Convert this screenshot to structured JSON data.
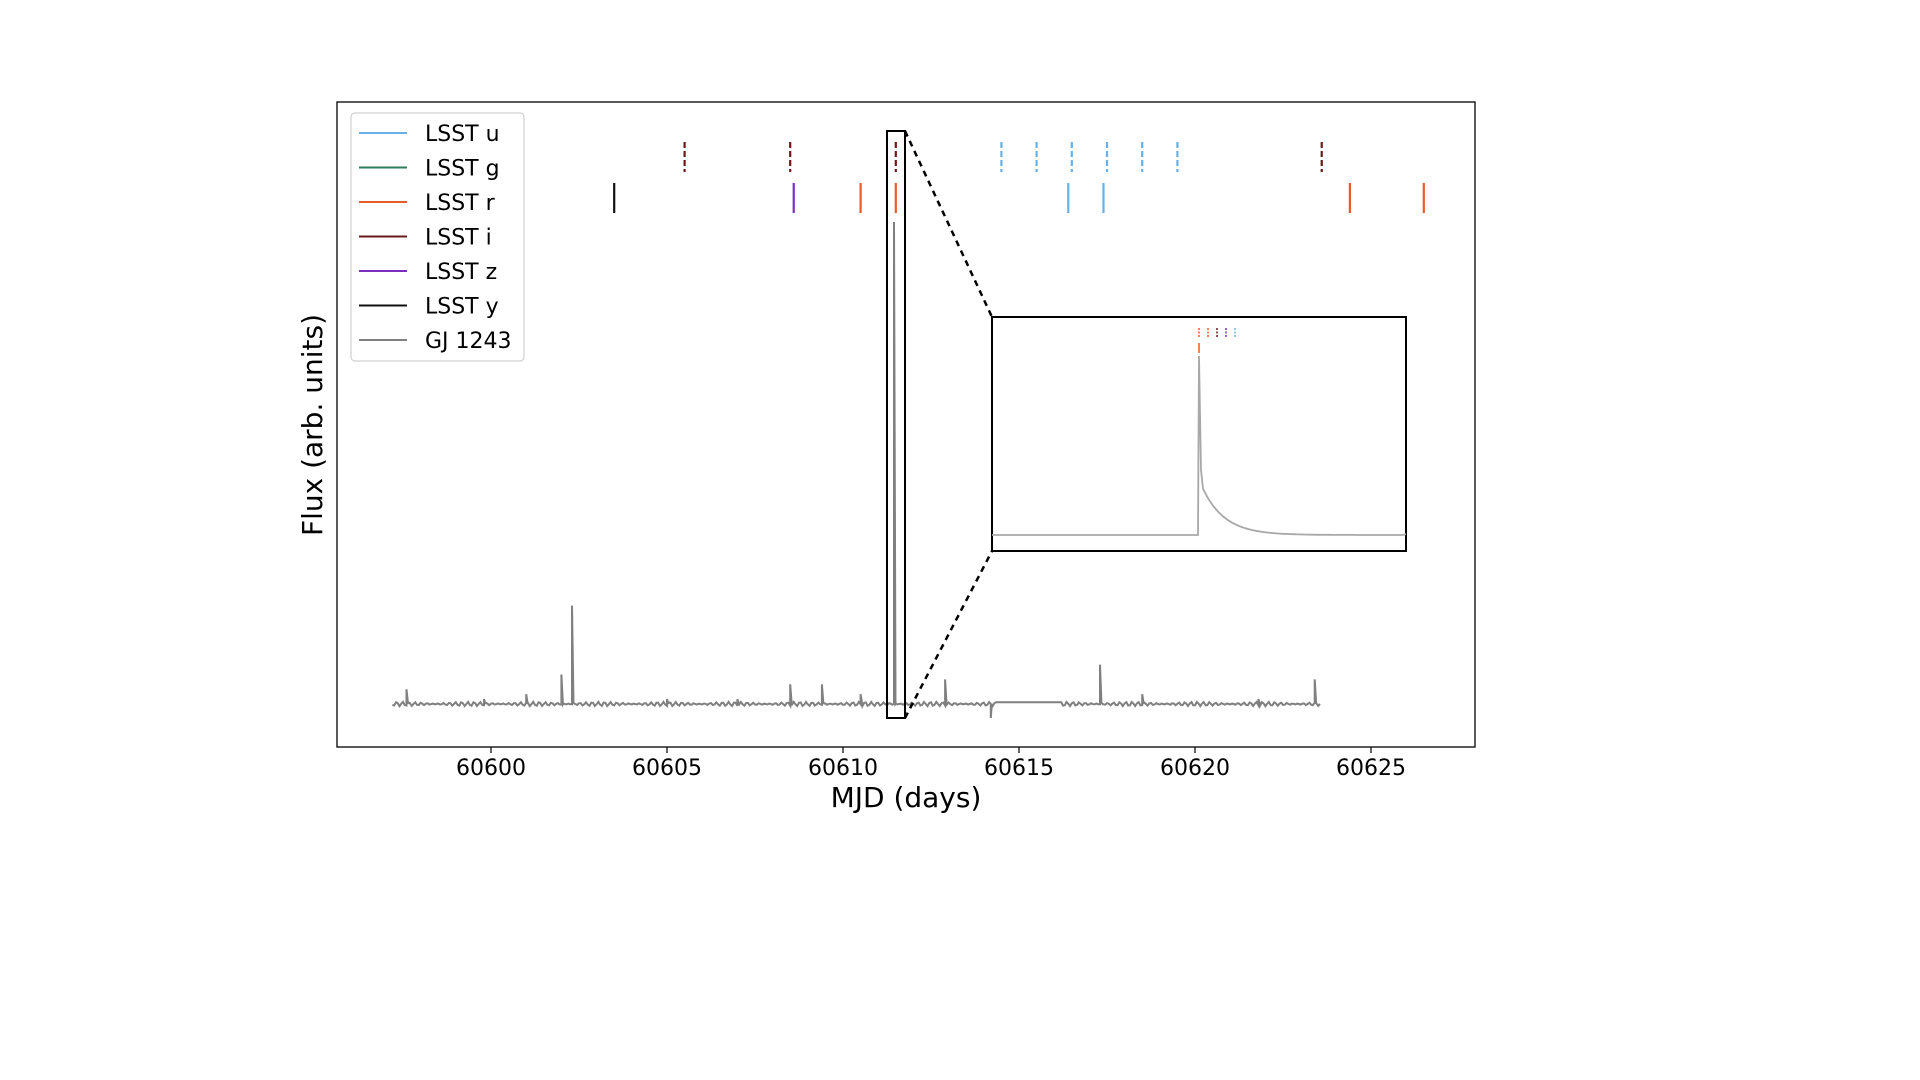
{
  "chart_data": {
    "type": "line",
    "xlabel": "MJD (days)",
    "ylabel": "Flux (arb. units)",
    "xlim": [
      59597.0,
      60628.0
    ],
    "x_ticks": [
      60600,
      60605,
      60610,
      60615,
      60620,
      60625
    ],
    "y_ticks_shown": false,
    "grid": false,
    "legend_placement": "top-left",
    "legend": [
      {
        "label": "LSST u",
        "color": "#6ab0e6"
      },
      {
        "label": "LSST g",
        "color": "#2e7d5b"
      },
      {
        "label": "LSST r",
        "color": "#ea5b2a"
      },
      {
        "label": "LSST i",
        "color": "#6b1a1a"
      },
      {
        "label": "LSST z",
        "color": "#7a2fbf"
      },
      {
        "label": "LSST y",
        "color": "#111111"
      },
      {
        "label": "GJ 1243",
        "color": "#808080"
      }
    ],
    "observations": [
      {
        "band": "LSST i",
        "mjd": 60605.5,
        "style": "dashed",
        "row": 1
      },
      {
        "band": "LSST i",
        "mjd": 60608.5,
        "style": "dashed",
        "row": 1
      },
      {
        "band": "LSST i",
        "mjd": 60611.5,
        "style": "dashed",
        "row": 1
      },
      {
        "band": "LSST i",
        "mjd": 60623.6,
        "style": "dashed",
        "row": 1
      },
      {
        "band": "LSST u",
        "mjd": 60614.5,
        "style": "dashed",
        "row": 1
      },
      {
        "band": "LSST u",
        "mjd": 60615.5,
        "style": "dashed",
        "row": 1
      },
      {
        "band": "LSST u",
        "mjd": 60616.5,
        "style": "dashed",
        "row": 1
      },
      {
        "band": "LSST u",
        "mjd": 60617.5,
        "style": "dashed",
        "row": 1
      },
      {
        "band": "LSST u",
        "mjd": 60618.5,
        "style": "dashed",
        "row": 1
      },
      {
        "band": "LSST u",
        "mjd": 60619.5,
        "style": "dashed",
        "row": 1
      },
      {
        "band": "LSST y",
        "mjd": 60603.5,
        "style": "solid",
        "row": 2
      },
      {
        "band": "LSST z",
        "mjd": 60608.6,
        "style": "solid",
        "row": 2
      },
      {
        "band": "LSST r",
        "mjd": 60610.5,
        "style": "solid",
        "row": 2
      },
      {
        "band": "LSST r",
        "mjd": 60611.5,
        "style": "solid",
        "row": 2
      },
      {
        "band": "LSST u",
        "mjd": 60616.4,
        "style": "solid",
        "row": 2
      },
      {
        "band": "LSST u",
        "mjd": 60617.4,
        "style": "solid",
        "row": 2
      },
      {
        "band": "LSST r",
        "mjd": 60624.4,
        "style": "solid",
        "row": 2
      },
      {
        "band": "LSST r",
        "mjd": 60626.5,
        "style": "solid",
        "row": 2
      }
    ],
    "series": [
      {
        "name": "GJ 1243",
        "color": "#808080",
        "x_range": [
          60597.2,
          60623.6
        ],
        "baseline": 0.02,
        "flares": [
          {
            "mjd": 60597.6,
            "peak": 0.05
          },
          {
            "mjd": 60599.8,
            "peak": 0.03
          },
          {
            "mjd": 60601.0,
            "peak": 0.04
          },
          {
            "mjd": 60602.0,
            "peak": 0.08
          },
          {
            "mjd": 60602.3,
            "peak": 0.22
          },
          {
            "mjd": 60605.0,
            "peak": 0.03
          },
          {
            "mjd": 60607.0,
            "peak": 0.03
          },
          {
            "mjd": 60608.5,
            "peak": 0.06
          },
          {
            "mjd": 60609.4,
            "peak": 0.06
          },
          {
            "mjd": 60610.5,
            "peak": 0.04
          },
          {
            "mjd": 60611.45,
            "peak": 1.0
          },
          {
            "mjd": 60612.9,
            "peak": 0.07
          },
          {
            "mjd": 60617.3,
            "peak": 0.1
          },
          {
            "mjd": 60618.5,
            "peak": 0.04
          },
          {
            "mjd": 60621.8,
            "peak": 0.03
          },
          {
            "mjd": 60623.4,
            "peak": 0.07
          }
        ],
        "dips": [
          {
            "mjd": 60614.2,
            "depth": -0.03
          }
        ],
        "gap": [
          60614.4,
          60616.2
        ]
      }
    ],
    "inset": {
      "highlighted_region_mjd": [
        60611.3,
        60611.7
      ],
      "baseline": 0.02,
      "peak": 1.0,
      "tick_marks": [
        {
          "band": "LSST r",
          "color": "#ea5b2a",
          "style": "dashed"
        },
        {
          "band": "LSST r",
          "color": "#ea5b2a",
          "style": "dashed"
        },
        {
          "band": "LSST i",
          "color": "#6b1a1a",
          "style": "dashed"
        },
        {
          "band": "LSST z",
          "color": "#7a2fbf",
          "style": "dashed"
        },
        {
          "band": "LSST u",
          "color": "#6ab0e6",
          "style": "dashed"
        }
      ]
    }
  }
}
